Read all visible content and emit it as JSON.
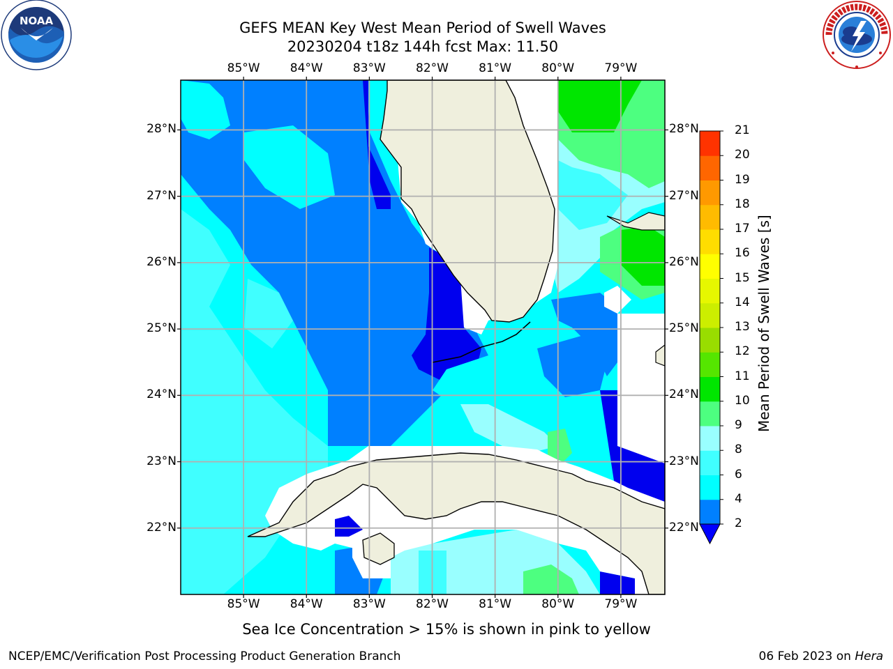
{
  "title_line1": "GEFS MEAN Key West Mean Period of Swell Waves",
  "title_line2": "20230204 t18z 144h fcst   Max: 11.50",
  "logos": {
    "left": {
      "name": "noaa-logo",
      "text": "NOAA",
      "ring_text": "NATIONAL OCEANIC AND ATMOSPHERIC ADMINISTRATION · U.S. DEPARTMENT OF COMMERCE"
    },
    "right": {
      "name": "nws-logo",
      "ring_text": "NATIONAL WEATHER SERVICE"
    }
  },
  "map": {
    "lon_labels": [
      "85°W",
      "84°W",
      "83°W",
      "82°W",
      "81°W",
      "80°W",
      "79°W"
    ],
    "lon_values": [
      -85,
      -84,
      -83,
      -82,
      -81,
      -80,
      -79
    ],
    "lat_labels": [
      "28°N",
      "27°N",
      "26°N",
      "25°N",
      "24°N",
      "23°N",
      "22°N"
    ],
    "lat_values": [
      28,
      27,
      26,
      25,
      24,
      23,
      22
    ],
    "extent": {
      "lon": [
        -86,
        -78.3
      ],
      "lat": [
        21,
        28.75
      ]
    },
    "grid": true,
    "land_color": "#efefdd",
    "missing_color": "#ffffff"
  },
  "colorbar": {
    "title": "Mean Period of Swell Waves [s]",
    "ticks": [
      "2",
      "4",
      "6",
      "8",
      "9",
      "10",
      "11",
      "12",
      "13",
      "14",
      "15",
      "16",
      "17",
      "18",
      "19",
      "20",
      "21"
    ],
    "colors": [
      "#0080ff",
      "#00ffff",
      "#40ffff",
      "#99ffff",
      "#4dff80",
      "#00e600",
      "#55e600",
      "#99dd00",
      "#ccee00",
      "#e6f700",
      "#ffff00",
      "#ffdd00",
      "#ffbb00",
      "#ff9900",
      "#ff6600",
      "#ff3300"
    ],
    "under_color": "#0000ff"
  },
  "legend_levels": [
    {
      "label": "< 2",
      "color": "#0000ee"
    },
    {
      "label": "2–4",
      "color": "#0080ff"
    },
    {
      "label": "4–6",
      "color": "#00ffff"
    },
    {
      "label": "6–8",
      "color": "#40ffff"
    },
    {
      "label": "8–9",
      "color": "#99ffff"
    },
    {
      "label": "9–10",
      "color": "#4dff80"
    },
    {
      "label": "10–11",
      "color": "#00e600"
    }
  ],
  "footer": {
    "ice_note": "Sea Ice Concentration > 15% is shown in pink to yellow",
    "credit": "NCEP/EMC/Verification Post Processing Product Generation Branch",
    "date": "06 Feb 2023 on ",
    "machine": "Hera"
  }
}
